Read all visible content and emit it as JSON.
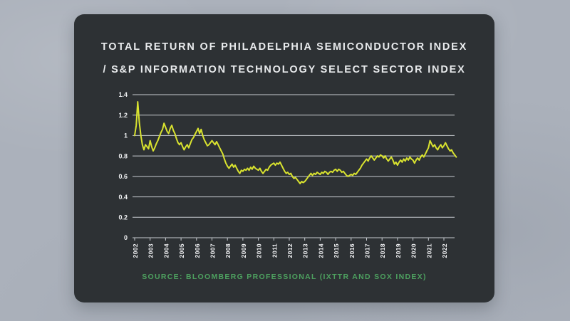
{
  "window": {
    "background_color": "#abb1bb"
  },
  "card": {
    "background_color": "#2d3134",
    "title_line1": "TOTAL RETURN OF PHILADELPHIA SEMICONDUCTOR INDEX",
    "title_line2": "/ S&P INFORMATION TECHNOLOGY SELECT SECTOR INDEX",
    "title_color": "#e9ebed",
    "source_text": "SOURCE: BLOOMBERG PROFESSIONAL (IXTTR AND SOX INDEX)",
    "source_color": "#4da05f"
  },
  "chart_data": {
    "type": "line",
    "title": "TOTAL RETURN OF PHILADELPHIA SEMICONDUCTOR INDEX / S&P INFORMATION TECHNOLOGY SELECT SECTOR INDEX",
    "xlabel": "",
    "ylabel": "",
    "legend": "none",
    "grid": true,
    "line_color": "#d9e32f",
    "grid_color": "#c7cbd0",
    "label_color": "#f0f1f3",
    "ylim": [
      0,
      1.4
    ],
    "y_tick_labels": [
      "1.4",
      "1.2",
      "1",
      "0.8",
      "0.6",
      "0.4",
      "0.2",
      "0"
    ],
    "x_tick_labels": [
      "2002",
      "2003",
      "2004",
      "2005",
      "2006",
      "2007",
      "2008",
      "2009",
      "2010",
      "2011",
      "2012",
      "2013",
      "2014",
      "2015",
      "2016",
      "2017",
      "2018",
      "2019",
      "2020",
      "2021",
      "2022"
    ],
    "x_start": 2002.0,
    "x_step": 0.1,
    "values": [
      1.0,
      1.1,
      1.33,
      1.13,
      1.0,
      0.91,
      0.86,
      0.91,
      0.89,
      0.87,
      0.95,
      0.89,
      0.85,
      0.88,
      0.92,
      0.95,
      0.99,
      1.03,
      1.06,
      1.12,
      1.08,
      1.04,
      1.02,
      1.07,
      1.1,
      1.05,
      1.02,
      0.97,
      0.93,
      0.91,
      0.93,
      0.89,
      0.86,
      0.89,
      0.91,
      0.88,
      0.92,
      0.96,
      0.98,
      1.01,
      1.04,
      1.07,
      1.02,
      1.06,
      1.0,
      0.96,
      0.93,
      0.9,
      0.91,
      0.93,
      0.95,
      0.93,
      0.91,
      0.94,
      0.91,
      0.88,
      0.85,
      0.82,
      0.77,
      0.73,
      0.7,
      0.68,
      0.7,
      0.72,
      0.69,
      0.71,
      0.68,
      0.65,
      0.63,
      0.66,
      0.65,
      0.67,
      0.66,
      0.68,
      0.66,
      0.69,
      0.67,
      0.7,
      0.68,
      0.67,
      0.66,
      0.68,
      0.65,
      0.63,
      0.65,
      0.67,
      0.66,
      0.69,
      0.71,
      0.72,
      0.73,
      0.71,
      0.73,
      0.72,
      0.74,
      0.71,
      0.68,
      0.65,
      0.63,
      0.64,
      0.62,
      0.63,
      0.6,
      0.58,
      0.59,
      0.57,
      0.55,
      0.53,
      0.55,
      0.54,
      0.55,
      0.57,
      0.59,
      0.61,
      0.63,
      0.61,
      0.63,
      0.62,
      0.64,
      0.63,
      0.62,
      0.64,
      0.63,
      0.65,
      0.64,
      0.62,
      0.64,
      0.65,
      0.64,
      0.66,
      0.67,
      0.65,
      0.67,
      0.66,
      0.64,
      0.65,
      0.63,
      0.61,
      0.6,
      0.61,
      0.62,
      0.61,
      0.63,
      0.62,
      0.64,
      0.66,
      0.68,
      0.71,
      0.73,
      0.75,
      0.77,
      0.75,
      0.78,
      0.8,
      0.78,
      0.76,
      0.78,
      0.8,
      0.79,
      0.81,
      0.8,
      0.78,
      0.8,
      0.77,
      0.75,
      0.77,
      0.79,
      0.76,
      0.72,
      0.74,
      0.71,
      0.74,
      0.76,
      0.74,
      0.77,
      0.75,
      0.78,
      0.76,
      0.79,
      0.77,
      0.76,
      0.73,
      0.76,
      0.78,
      0.76,
      0.79,
      0.81,
      0.79,
      0.82,
      0.85,
      0.88,
      0.95,
      0.92,
      0.89,
      0.91,
      0.88,
      0.86,
      0.89,
      0.91,
      0.88,
      0.9,
      0.93,
      0.9,
      0.87,
      0.85,
      0.86,
      0.83,
      0.81,
      0.79
    ]
  }
}
